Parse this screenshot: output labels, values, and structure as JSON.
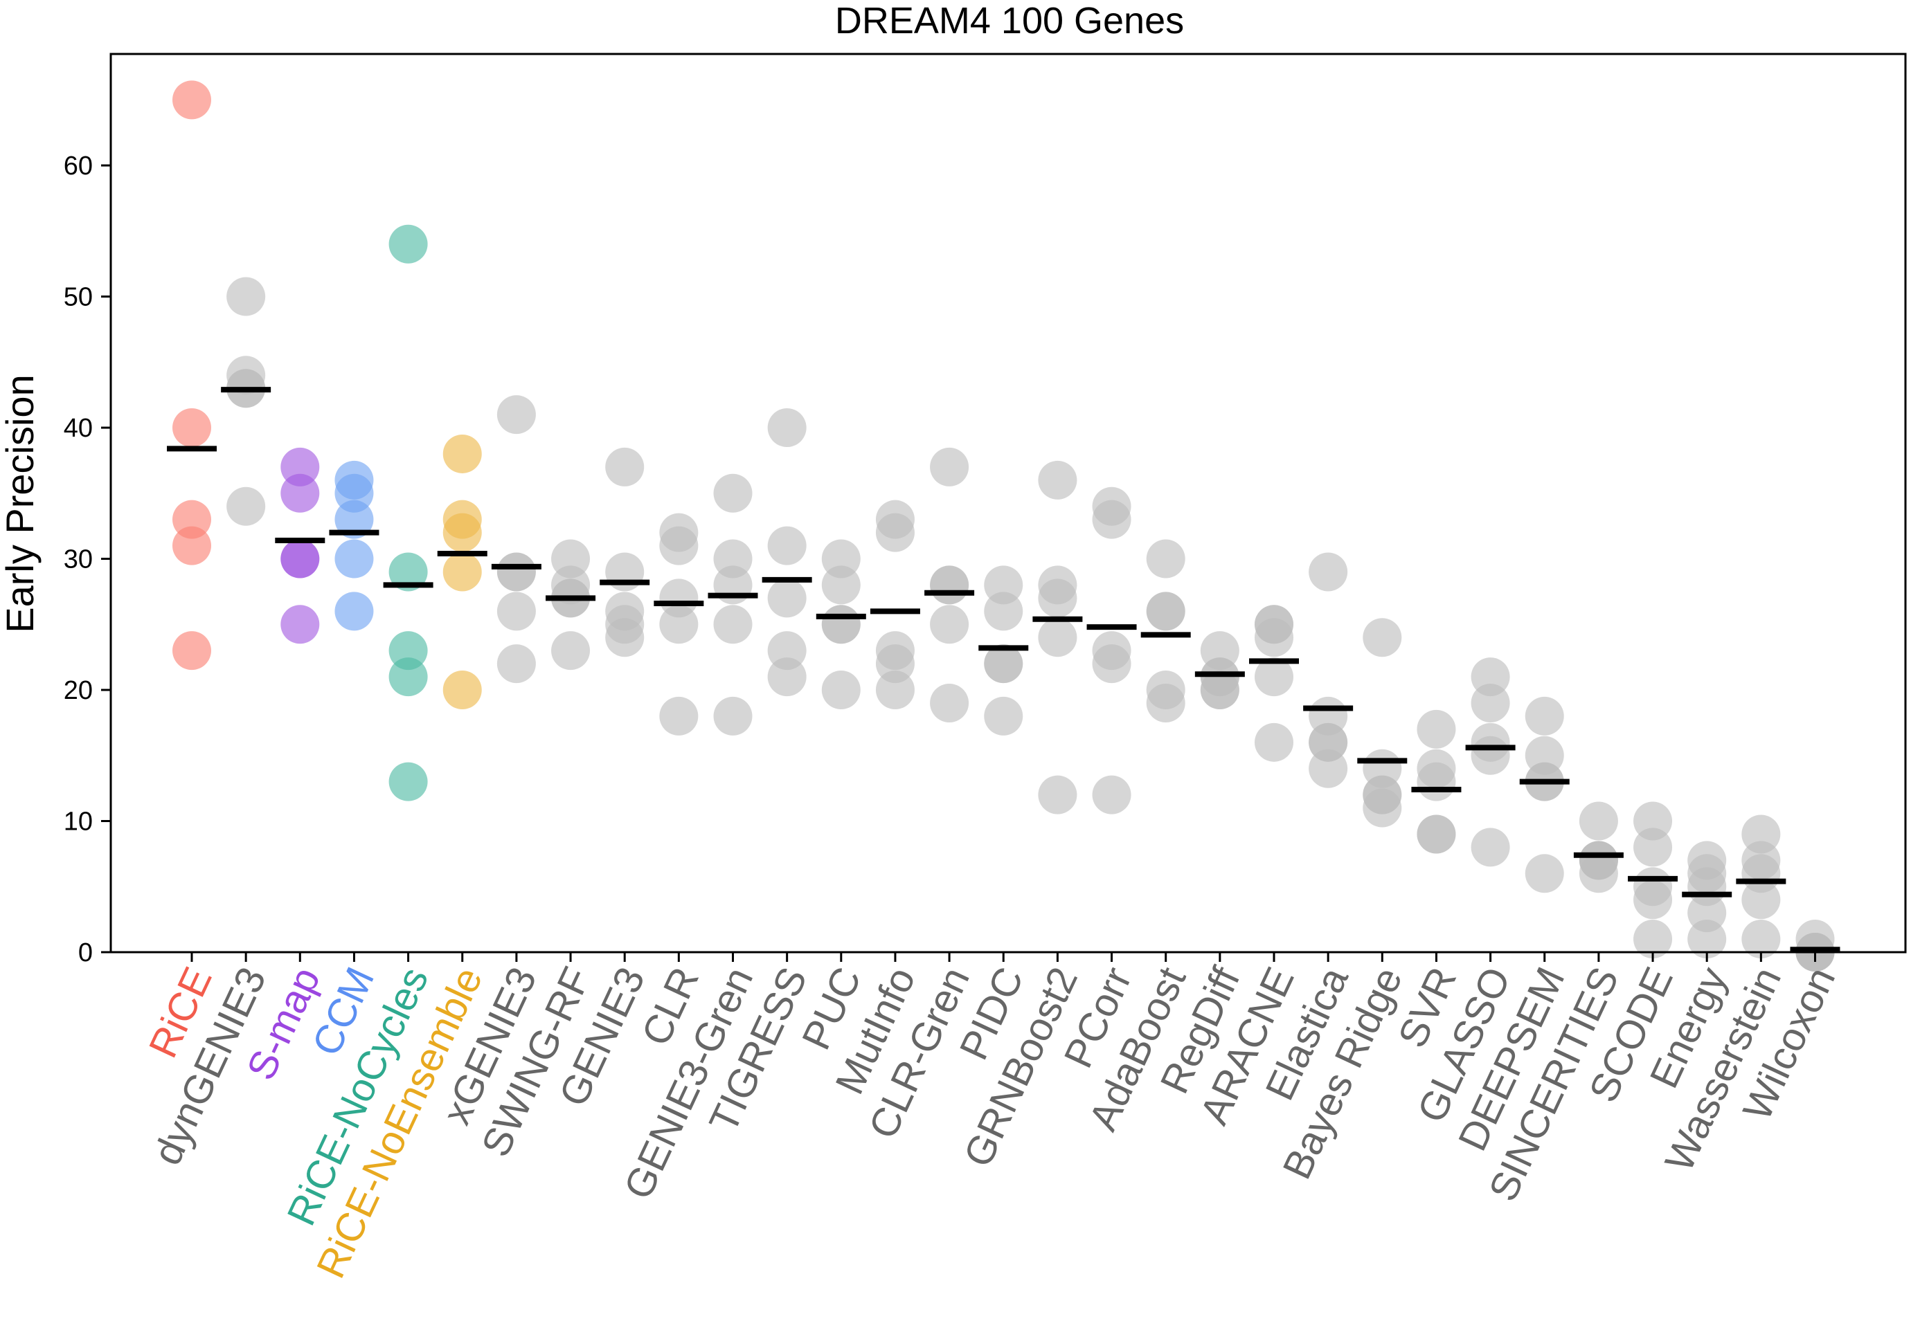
{
  "chart_data": {
    "type": "scatter",
    "title": "DREAM4 100 Genes",
    "xlabel": "",
    "ylabel": "Early Precision",
    "ylim": [
      0,
      68.5
    ],
    "yticks": [
      0,
      10,
      20,
      30,
      40,
      50,
      60
    ],
    "grid": false,
    "legend": "none",
    "neutral_color": "#bdbdbd",
    "neutral_label_color": "#666666",
    "categories": [
      {
        "label": "RiCE",
        "color": "#fa8072",
        "label_color": "#f25c4c",
        "values": [
          65,
          40,
          33,
          31,
          23
        ],
        "median": 38.4
      },
      {
        "label": "dynGENIE3",
        "values": [
          50,
          44,
          43,
          43,
          34
        ],
        "median": 42.9
      },
      {
        "label": "S-map",
        "color": "#a35ae0",
        "label_color": "#9b46e0",
        "values": [
          37,
          35,
          30,
          30,
          25
        ],
        "median": 31.4
      },
      {
        "label": "CCM",
        "color": "#6fa3f2",
        "label_color": "#5b8ff2",
        "values": [
          36,
          35,
          33,
          30,
          26
        ],
        "median": 32.0
      },
      {
        "label": "RiCE-NoCycles",
        "color": "#4dbaa3",
        "label_color": "#2ea98e",
        "values": [
          54,
          29,
          23,
          21,
          13
        ],
        "median": 28.0
      },
      {
        "label": "RiCE-NoEnsemble",
        "color": "#edb84a",
        "label_color": "#e8a91f",
        "values": [
          38,
          33,
          32,
          29,
          20
        ],
        "median": 30.4
      },
      {
        "label": "xGENIE3",
        "values": [
          41,
          29,
          29,
          26,
          22
        ],
        "median": 29.4
      },
      {
        "label": "SWING-RF",
        "values": [
          30,
          28,
          27,
          27,
          23
        ],
        "median": 27.0
      },
      {
        "label": "GENIE3",
        "values": [
          37,
          29,
          26,
          25,
          24
        ],
        "median": 28.2
      },
      {
        "label": "CLR",
        "values": [
          32,
          31,
          27,
          25,
          18
        ],
        "median": 26.6
      },
      {
        "label": "GENIE3-Gren",
        "values": [
          35,
          30,
          28,
          25,
          18
        ],
        "median": 27.2
      },
      {
        "label": "TIGRESS",
        "values": [
          40,
          31,
          27,
          23,
          21
        ],
        "median": 28.4
      },
      {
        "label": "PUC",
        "values": [
          30,
          28,
          25,
          25,
          20
        ],
        "median": 25.6
      },
      {
        "label": "MutInfo",
        "values": [
          33,
          32,
          23,
          22,
          20
        ],
        "median": 26.0
      },
      {
        "label": "CLR-Gren",
        "values": [
          37,
          28,
          28,
          25,
          19
        ],
        "median": 27.4
      },
      {
        "label": "PIDC",
        "values": [
          28,
          26,
          22,
          22,
          18
        ],
        "median": 23.2
      },
      {
        "label": "GRNBoost2",
        "values": [
          36,
          28,
          27,
          24,
          12
        ],
        "median": 25.4
      },
      {
        "label": "PCorr",
        "values": [
          34,
          33,
          23,
          22,
          12
        ],
        "median": 24.8
      },
      {
        "label": "AdaBoost",
        "values": [
          30,
          26,
          26,
          20,
          19
        ],
        "median": 24.2
      },
      {
        "label": "RegDiff",
        "values": [
          23,
          21,
          21,
          20,
          20
        ],
        "median": 21.2
      },
      {
        "label": "ARACNE",
        "values": [
          25,
          25,
          24,
          21,
          16
        ],
        "median": 22.2
      },
      {
        "label": "Elastica",
        "values": [
          29,
          18,
          16,
          16,
          14
        ],
        "median": 18.6
      },
      {
        "label": "Bayes Ridge",
        "values": [
          24,
          14,
          12,
          12,
          11
        ],
        "median": 14.6
      },
      {
        "label": "SVR",
        "values": [
          17,
          14,
          13,
          9,
          9
        ],
        "median": 12.4
      },
      {
        "label": "GLASSO",
        "values": [
          21,
          19,
          16,
          15,
          8
        ],
        "median": 15.6
      },
      {
        "label": "DEEPSEM",
        "values": [
          18,
          15,
          13,
          13,
          6
        ],
        "median": 13.0
      },
      {
        "label": "SINCERITIES",
        "values": [
          10,
          7,
          7,
          7,
          6
        ],
        "median": 7.4
      },
      {
        "label": "SCODE",
        "values": [
          10,
          8,
          5,
          4,
          1
        ],
        "median": 5.6
      },
      {
        "label": "Energy",
        "values": [
          7,
          6,
          5,
          3,
          1
        ],
        "median": 4.4
      },
      {
        "label": "Wasserstein",
        "values": [
          9,
          7,
          6,
          4,
          1
        ],
        "median": 5.4
      },
      {
        "label": "Wilcoxon",
        "values": [
          1,
          0,
          0,
          0,
          0
        ],
        "median": 0.2
      }
    ]
  }
}
